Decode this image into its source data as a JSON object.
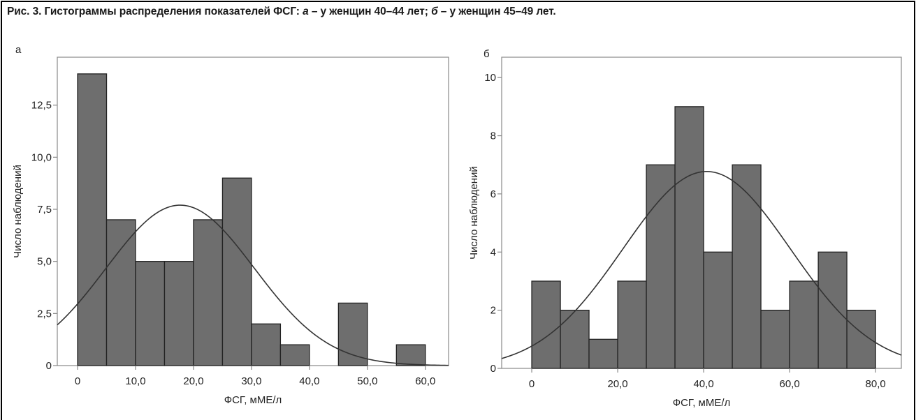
{
  "caption": {
    "prefix": "Рис. 3. Гистограммы распределения показателей ФСГ: ",
    "part_a_letter": "а",
    "part_a_text": " – у женщин 40–44 лет; ",
    "part_b_letter": "б",
    "part_b_text": " – у женщин 45–49 лет."
  },
  "colors": {
    "bar_fill": "#6e6e6e",
    "bar_stroke": "#222222",
    "curve": "#333333",
    "axis": "#888888"
  },
  "chart_data": [
    {
      "panel": "а",
      "type": "bar",
      "xlabel": "ФСГ, мМЕ/л",
      "ylabel": "Число наблюдений",
      "bin_edges": [
        0,
        5,
        10,
        15,
        20,
        25,
        30,
        35,
        40,
        45,
        50,
        55,
        60
      ],
      "values": [
        14,
        7,
        5,
        5,
        7,
        9,
        2,
        1,
        0,
        3,
        0,
        1
      ],
      "xlim": [
        -3.5,
        64
      ],
      "ylim": [
        0,
        14.8
      ],
      "xticks": [
        0,
        10,
        20,
        30,
        40,
        50,
        60
      ],
      "xtick_labels": [
        "0",
        "10,0",
        "20,0",
        "30,0",
        "40,0",
        "50,0",
        "60,0"
      ],
      "yticks": [
        0,
        2.5,
        5,
        7.5,
        10,
        12.5
      ],
      "ytick_labels": [
        "0",
        "2,5",
        "5,0",
        "7,5",
        "10,0",
        "12,5"
      ],
      "normal_curve": {
        "mean": 17.7,
        "sd": 12.8,
        "peak": 7.7
      }
    },
    {
      "panel": "б",
      "type": "bar",
      "xlabel": "ФСГ, мМЕ/л",
      "ylabel": "Число наблюдений",
      "bin_edges": [
        0,
        6.67,
        13.33,
        20,
        26.67,
        33.33,
        40,
        46.67,
        53.33,
        60,
        66.67,
        73.33,
        80
      ],
      "values": [
        3,
        2,
        1,
        3,
        7,
        9,
        4,
        7,
        2,
        3,
        4,
        2
      ],
      "xlim": [
        -7,
        86
      ],
      "ylim": [
        0,
        10.7
      ],
      "xticks": [
        0,
        20,
        40,
        60,
        80
      ],
      "xtick_labels": [
        "0",
        "20,0",
        "40,0",
        "60,0",
        "80,0"
      ],
      "yticks": [
        0,
        2,
        4,
        6,
        8,
        10
      ],
      "ytick_labels": [
        "0",
        "2",
        "4",
        "6",
        "8",
        "10"
      ],
      "normal_curve": {
        "mean": 40.7,
        "sd": 19.5,
        "peak": 6.77
      }
    }
  ]
}
